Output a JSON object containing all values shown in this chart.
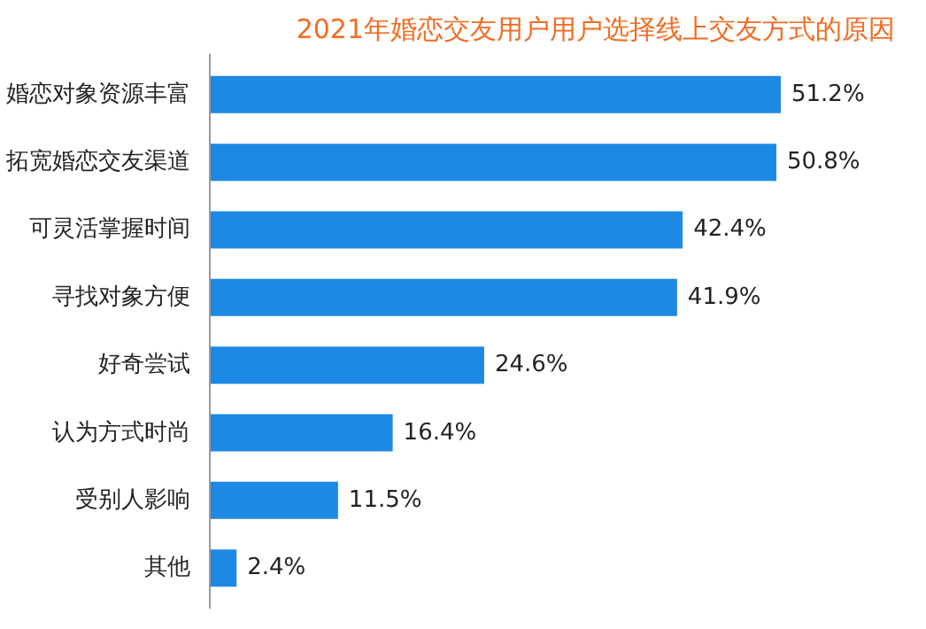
{
  "chart_data": {
    "type": "bar",
    "orientation": "horizontal",
    "title": "2021年婚恋交友用户用户选择线上交友方式的原因",
    "categories": [
      "婚恋对象资源丰富",
      "拓宽婚恋交友渠道",
      "可灵活掌握时间",
      "寻找对象方便",
      "好奇尝试",
      "认为方式时尚",
      "受别人影响",
      "其他"
    ],
    "values": [
      51.2,
      50.8,
      42.4,
      41.9,
      24.6,
      16.4,
      11.5,
      2.4
    ],
    "value_labels": [
      "51.2%",
      "50.8%",
      "42.4%",
      "41.9%",
      "24.6%",
      "16.4%",
      "11.5%",
      "2.4%"
    ],
    "color": "#1e88e5"
  }
}
